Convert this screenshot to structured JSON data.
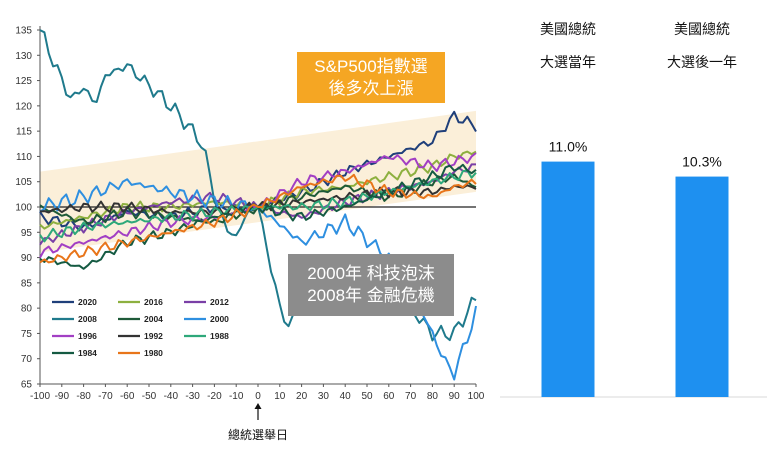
{
  "chart_data": [
    {
      "type": "line",
      "xlim": [
        -100,
        100
      ],
      "ylim": [
        65,
        135
      ],
      "x_ticks": [
        -100,
        -90,
        -80,
        -70,
        -60,
        -50,
        -40,
        -30,
        -20,
        -10,
        0,
        10,
        20,
        30,
        40,
        50,
        60,
        70,
        80,
        90,
        100
      ],
      "y_ticks": [
        65,
        70,
        75,
        80,
        85,
        90,
        95,
        100,
        105,
        110,
        115,
        120,
        125,
        130,
        135
      ],
      "reference_line": 100,
      "xlabel": "總統選舉日",
      "grid": false,
      "annotations": [
        {
          "text": [
            "S&P500指數選",
            "後多次上漲"
          ],
          "color": "#F5A623"
        },
        {
          "text": [
            "2000年 科技泡沫",
            "2008年 金融危機"
          ],
          "color": "#8C8C8C"
        }
      ],
      "band_color": "#FBEFD9",
      "series": [
        {
          "name": "2020",
          "color": "#1F3F7A",
          "x": [
            -100,
            -80,
            -60,
            -40,
            -20,
            0,
            20,
            40,
            60,
            80,
            90,
            100
          ],
          "y": [
            98,
            96,
            99,
            98,
            100,
            100,
            103,
            107,
            110,
            113,
            118,
            116
          ]
        },
        {
          "name": "2016",
          "color": "#8DB03F",
          "x": [
            -100,
            -80,
            -60,
            -40,
            -20,
            0,
            20,
            40,
            60,
            80,
            90,
            100
          ],
          "y": [
            96,
            98,
            100,
            100,
            101,
            100,
            103,
            104,
            106,
            108,
            110,
            111
          ]
        },
        {
          "name": "2012",
          "color": "#7A3FA6",
          "x": [
            -100,
            -80,
            -60,
            -40,
            -20,
            0,
            20,
            40,
            60,
            80,
            90,
            100
          ],
          "y": [
            93,
            96,
            99,
            101,
            102,
            100,
            98,
            101,
            103,
            105,
            107,
            108
          ]
        },
        {
          "name": "2008",
          "color": "#1F7A8C",
          "x": [
            -100,
            -95,
            -90,
            -85,
            -80,
            -75,
            -70,
            -60,
            -50,
            -40,
            -30,
            -25,
            -20,
            -15,
            -10,
            -5,
            0,
            5,
            10,
            15,
            20,
            30,
            40,
            50,
            60,
            70,
            80,
            90,
            100
          ],
          "y": [
            135,
            130,
            125,
            121,
            124,
            120,
            126,
            128,
            124,
            120,
            115,
            112,
            102,
            96,
            94,
            99,
            100,
            90,
            80,
            76,
            82,
            86,
            84,
            82,
            80,
            80,
            75,
            75,
            82
          ]
        },
        {
          "name": "2004",
          "color": "#1E5A38",
          "x": [
            -100,
            -80,
            -60,
            -40,
            -20,
            0,
            20,
            40,
            60,
            80,
            90,
            100
          ],
          "y": [
            100,
            97,
            99,
            98,
            97,
            100,
            102,
            104,
            102,
            105,
            106,
            104
          ]
        },
        {
          "name": "2000",
          "color": "#2E8FE0",
          "x": [
            -100,
            -80,
            -60,
            -40,
            -20,
            0,
            20,
            40,
            60,
            70,
            80,
            85,
            90,
            100
          ],
          "y": [
            100,
            102,
            105,
            103,
            101,
            100,
            93,
            97,
            90,
            84,
            75,
            70,
            67,
            79
          ]
        },
        {
          "name": "1996",
          "color": "#A23FC4",
          "x": [
            -100,
            -80,
            -60,
            -40,
            -20,
            0,
            20,
            40,
            60,
            80,
            90,
            100
          ],
          "y": [
            91,
            93,
            95,
            97,
            98,
            100,
            105,
            107,
            110,
            108,
            109,
            110
          ]
        },
        {
          "name": "1992",
          "color": "#333333",
          "x": [
            -100,
            -80,
            -60,
            -40,
            -20,
            0,
            20,
            40,
            60,
            80,
            90,
            100
          ],
          "y": [
            99,
            100,
            100,
            99,
            99,
            100,
            101,
            102,
            103,
            103,
            104,
            104
          ]
        },
        {
          "name": "1988",
          "color": "#2EA87A",
          "x": [
            -100,
            -80,
            -60,
            -40,
            -20,
            0,
            20,
            40,
            60,
            80,
            90,
            100
          ],
          "y": [
            94,
            96,
            97,
            98,
            99,
            100,
            100,
            101,
            103,
            105,
            106,
            107
          ]
        },
        {
          "name": "1984",
          "color": "#145A42",
          "x": [
            -100,
            -80,
            -60,
            -40,
            -20,
            0,
            20,
            40,
            60,
            80,
            90,
            100
          ],
          "y": [
            90,
            88,
            93,
            95,
            98,
            100,
            98,
            100,
            103,
            106,
            108,
            107
          ]
        },
        {
          "name": "1980",
          "color": "#E8751A",
          "x": [
            -100,
            -80,
            -60,
            -40,
            -20,
            0,
            20,
            40,
            60,
            80,
            90,
            100
          ],
          "y": [
            89,
            91,
            93,
            95,
            97,
            100,
            104,
            106,
            103,
            102,
            104,
            105
          ]
        }
      ]
    },
    {
      "type": "bar",
      "categories": [
        [
          "美國總統",
          "大選當年"
        ],
        [
          "美國總統",
          "大選後一年"
        ]
      ],
      "values": [
        11.0,
        10.3
      ],
      "labels": [
        "11.0%",
        "10.3%"
      ],
      "color": "#1E90F0"
    }
  ]
}
